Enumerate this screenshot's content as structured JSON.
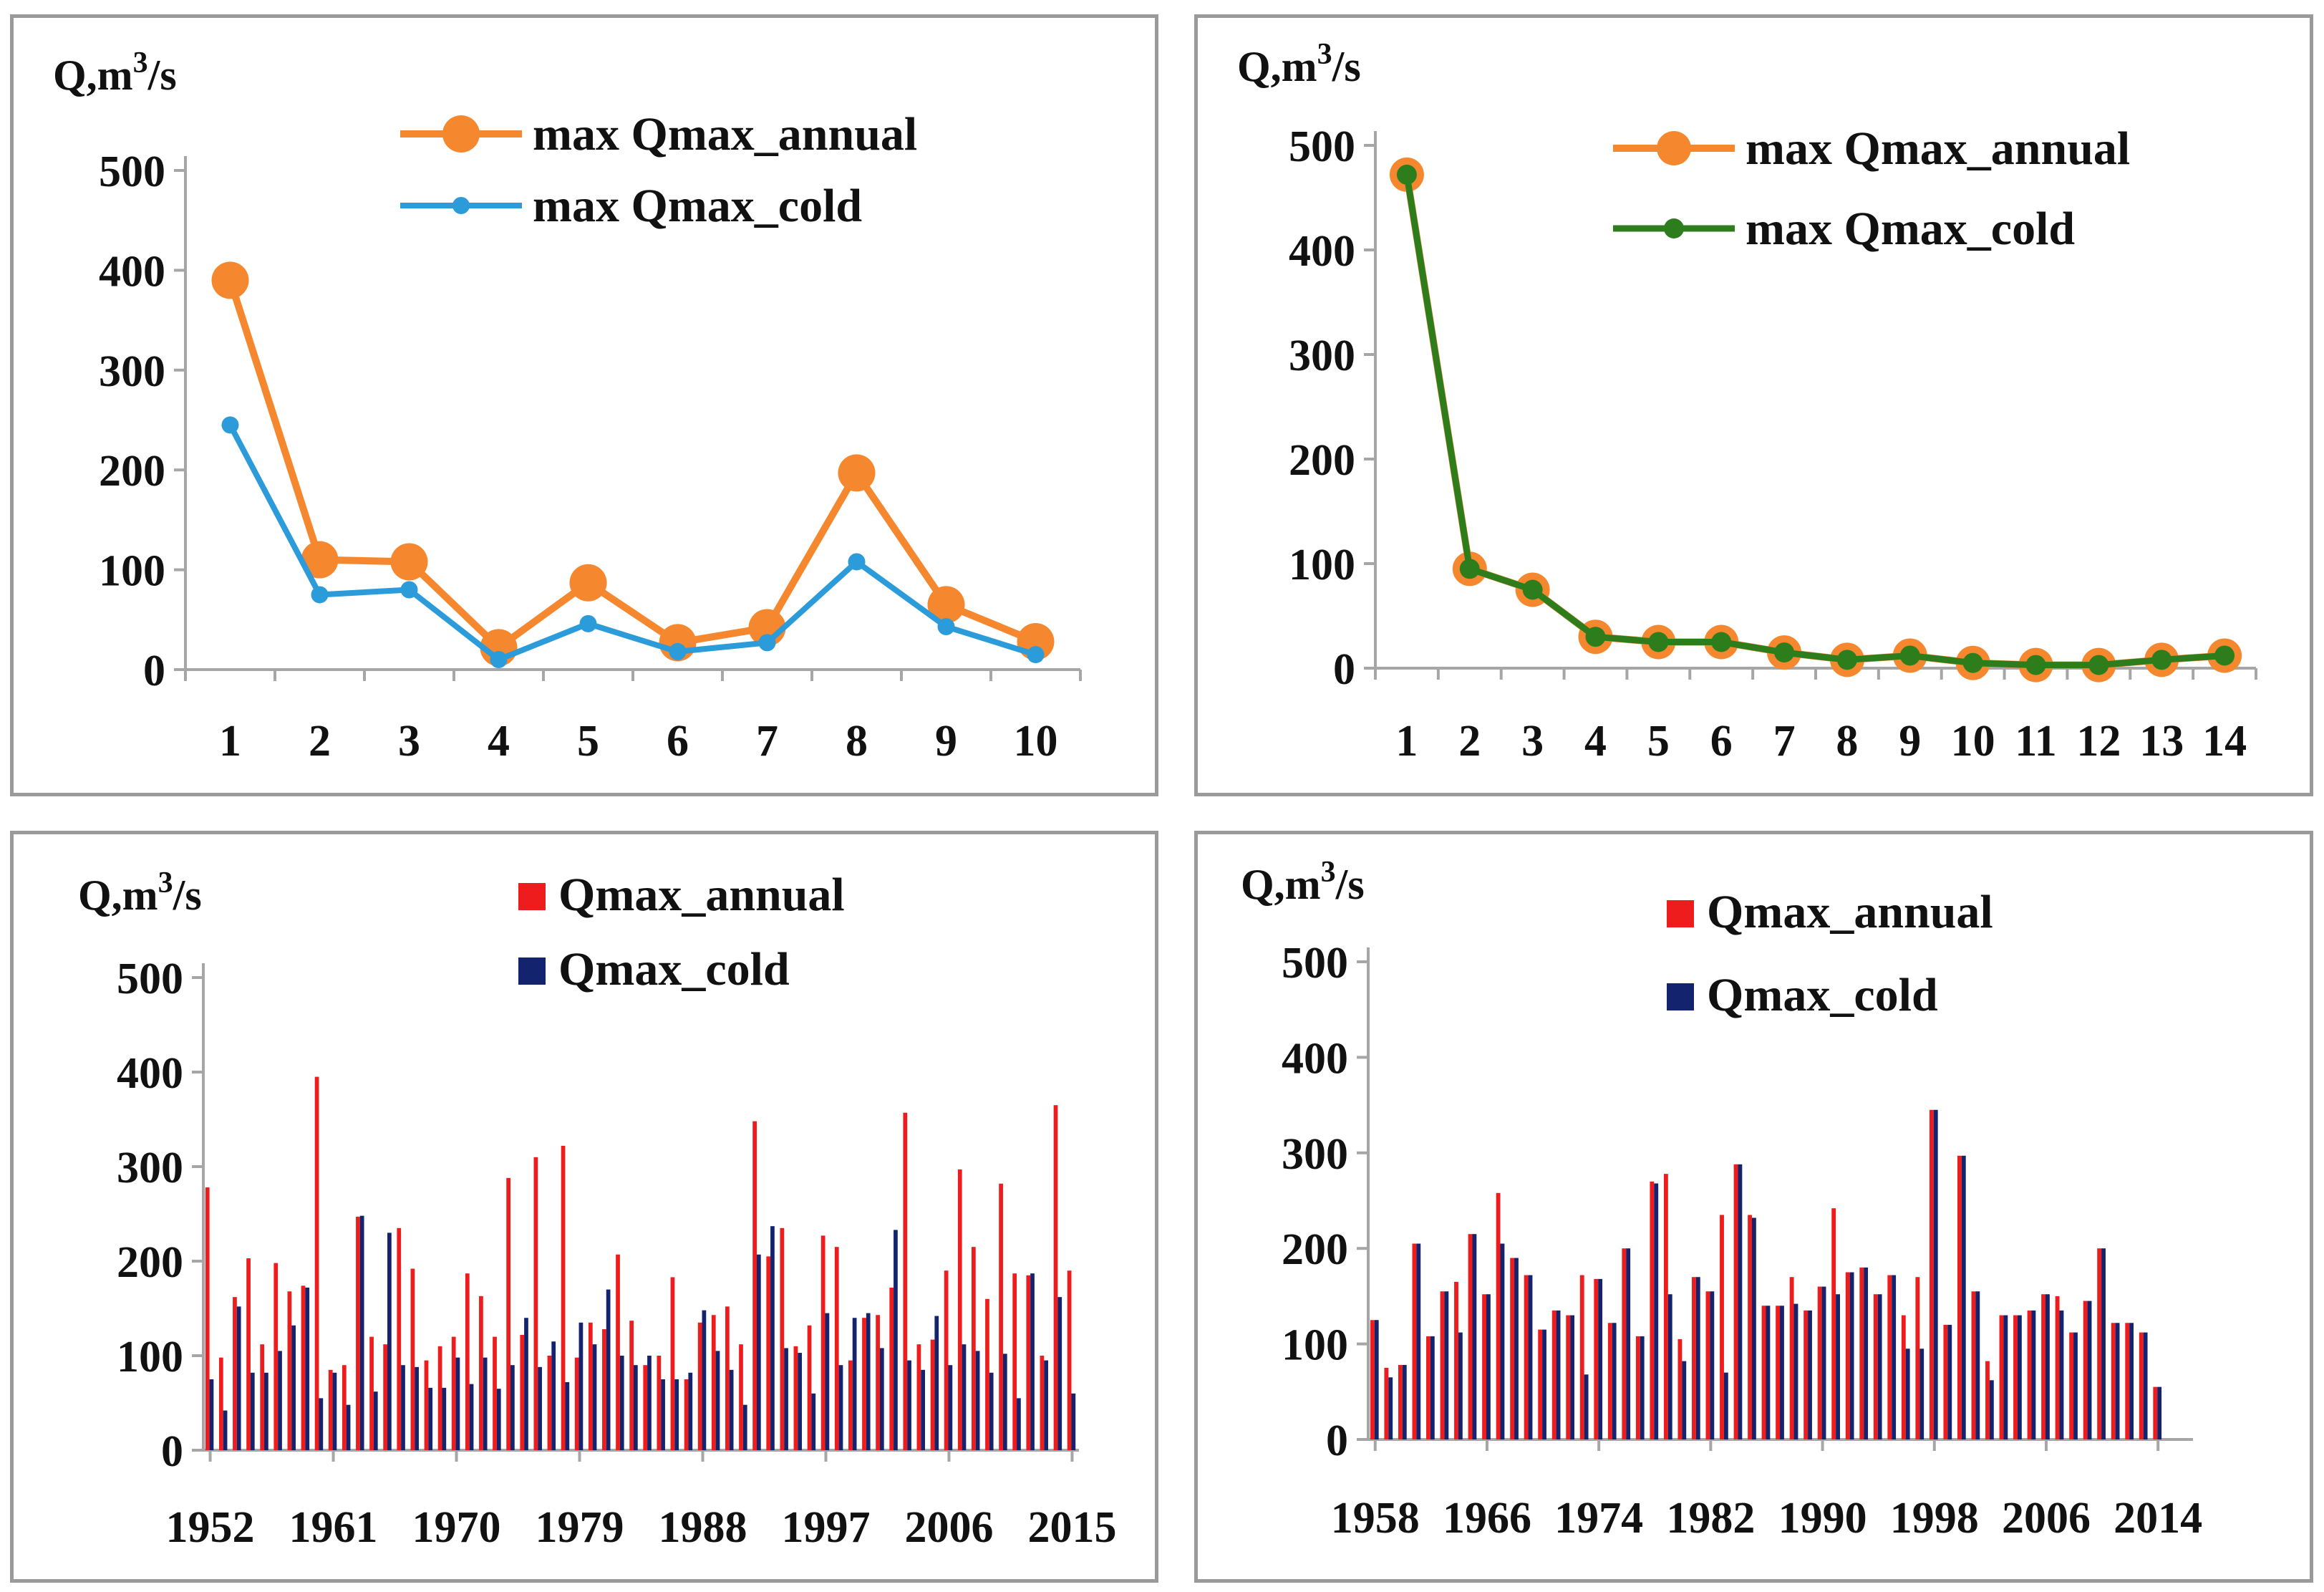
{
  "colors": {
    "orange": "#f5882f",
    "blue": "#2b9bd9",
    "green": "#2e7d1c",
    "red": "#ee1c1c",
    "navy": "#14236e",
    "axis": "#a6a6a6",
    "border": "#9a9a9a"
  },
  "chart_data": [
    {
      "type": "line",
      "ylabel": "Q,m³/s",
      "ylim": [
        0,
        500
      ],
      "yticks": [
        "0",
        "100",
        "200",
        "300",
        "400",
        "500"
      ],
      "categories": [
        "1",
        "2",
        "3",
        "4",
        "5",
        "6",
        "7",
        "8",
        "9",
        "10"
      ],
      "legend_position": "top-right",
      "series": [
        {
          "name": "max Qmax_annual",
          "color": "#f5882f",
          "values": [
            390,
            110,
            108,
            22,
            87,
            27,
            42,
            197,
            65,
            28
          ]
        },
        {
          "name": "max Qmax_cold",
          "color": "#2b9bd9",
          "values": [
            245,
            75,
            80,
            10,
            46,
            18,
            27,
            108,
            43,
            15
          ]
        }
      ]
    },
    {
      "type": "line",
      "ylabel": "Q,m³/s",
      "ylim": [
        0,
        500
      ],
      "yticks": [
        "0",
        "100",
        "200",
        "300",
        "400",
        "500"
      ],
      "categories": [
        "1",
        "2",
        "3",
        "4",
        "5",
        "6",
        "7",
        "8",
        "9",
        "10",
        "11",
        "12",
        "13",
        "14"
      ],
      "legend_position": "top-right",
      "series": [
        {
          "name": "max Qmax_annual",
          "color": "#f5882f",
          "values": [
            472,
            95,
            75,
            30,
            25,
            25,
            15,
            8,
            12,
            5,
            3,
            3,
            8,
            12
          ]
        },
        {
          "name": "max Qmax_cold",
          "color": "#2e7d1c",
          "values": [
            472,
            95,
            75,
            30,
            25,
            25,
            15,
            8,
            12,
            5,
            3,
            3,
            8,
            12
          ]
        }
      ]
    },
    {
      "type": "bar",
      "ylabel": "Q,m³/s",
      "ylim": [
        0,
        500
      ],
      "yticks": [
        "0",
        "100",
        "200",
        "300",
        "400",
        "500"
      ],
      "x_start": 1952,
      "x_end": 2015,
      "xtick_labels": [
        "1952",
        "1961",
        "1970",
        "1979",
        "1988",
        "1997",
        "2006",
        "2015"
      ],
      "legend_position": "top-right",
      "series": [
        {
          "name": "Qmax_annual",
          "color": "#ee1c1c",
          "values": [
            278,
            98,
            162,
            203,
            112,
            198,
            168,
            174,
            395,
            85,
            90,
            247,
            120,
            112,
            235,
            192,
            95,
            110,
            120,
            187,
            163,
            120,
            288,
            122,
            310,
            100,
            322,
            98,
            135,
            128,
            207,
            137,
            90,
            100,
            183,
            75,
            135,
            143,
            152,
            112,
            348,
            205,
            235,
            110,
            132,
            227,
            215,
            95,
            140,
            143,
            172,
            357,
            112,
            117,
            190,
            297,
            215,
            160,
            282,
            187,
            185,
            100,
            365,
            190
          ]
        },
        {
          "name": "Qmax_cold",
          "color": "#14236e",
          "values": [
            75,
            42,
            152,
            82,
            82,
            105,
            132,
            172,
            55,
            82,
            48,
            248,
            62,
            230,
            90,
            88,
            66,
            66,
            98,
            70,
            98,
            65,
            90,
            140,
            88,
            115,
            72,
            135,
            112,
            170,
            100,
            90,
            100,
            75,
            75,
            82,
            148,
            105,
            85,
            48,
            207,
            237,
            108,
            103,
            60,
            145,
            90,
            140,
            145,
            108,
            233,
            95,
            85,
            142,
            90,
            112,
            105,
            82,
            102,
            55,
            187,
            95,
            162,
            60
          ]
        }
      ]
    },
    {
      "type": "bar",
      "ylabel": "Q,m³/s",
      "ylim": [
        0,
        500
      ],
      "yticks": [
        "0",
        "100",
        "200",
        "300",
        "400",
        "500"
      ],
      "x_start": 1958,
      "x_end": 2016,
      "xtick_labels": [
        "1958",
        "1966",
        "1974",
        "1982",
        "1990",
        "1998",
        "2006",
        "2014"
      ],
      "legend_position": "top-right",
      "series": [
        {
          "name": "Qmax_annual",
          "color": "#ee1c1c",
          "values": [
            125,
            75,
            78,
            205,
            108,
            155,
            165,
            215,
            152,
            258,
            190,
            172,
            115,
            135,
            130,
            172,
            168,
            122,
            200,
            108,
            270,
            278,
            105,
            170,
            155,
            235,
            288,
            235,
            140,
            140,
            170,
            135,
            160,
            242,
            175,
            180,
            152,
            172,
            130,
            170,
            345,
            120,
            297,
            155,
            82,
            130,
            130,
            135,
            152,
            150,
            112,
            145,
            200,
            122,
            122,
            112,
            55,
            0,
            0
          ]
        },
        {
          "name": "Qmax_cold",
          "color": "#14236e",
          "values": [
            125,
            65,
            78,
            205,
            108,
            155,
            112,
            215,
            152,
            205,
            190,
            172,
            115,
            135,
            130,
            68,
            168,
            122,
            200,
            108,
            268,
            152,
            82,
            170,
            155,
            70,
            288,
            232,
            140,
            140,
            142,
            135,
            160,
            152,
            175,
            180,
            152,
            172,
            95,
            95,
            345,
            120,
            297,
            155,
            62,
            130,
            130,
            135,
            152,
            135,
            112,
            145,
            200,
            122,
            122,
            112,
            55,
            0,
            0
          ]
        }
      ]
    }
  ]
}
